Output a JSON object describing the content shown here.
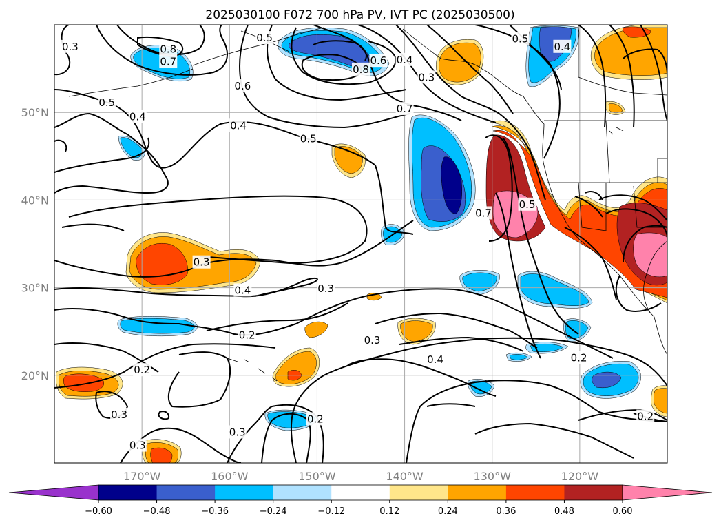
{
  "title": "2025030100 F072 700 hPa PV, IVT PC (2025030500)",
  "map": {
    "lon_range": [
      180,
      110
    ],
    "lat_range": [
      10,
      60
    ],
    "lat_ticks": [
      {
        "value": 50,
        "label": "50°N"
      },
      {
        "value": 40,
        "label": "40°N"
      },
      {
        "value": 30,
        "label": "30°N"
      },
      {
        "value": 20,
        "label": "20°N"
      }
    ],
    "lon_ticks": [
      {
        "value": 170,
        "label": "170°W"
      },
      {
        "value": 160,
        "label": "160°W"
      },
      {
        "value": 150,
        "label": "150°W"
      },
      {
        "value": 140,
        "label": "140°W"
      },
      {
        "value": 130,
        "label": "130°W"
      },
      {
        "value": 120,
        "label": "120°W"
      }
    ],
    "gridlines": true
  },
  "colorbar": {
    "levels": [
      -0.6,
      -0.48,
      -0.36,
      -0.24,
      -0.12,
      0.12,
      0.24,
      0.36,
      0.48,
      0.6
    ],
    "labels": [
      "−0.60",
      "−0.48",
      "−0.36",
      "−0.24",
      "−0.12",
      "0.12",
      "0.24",
      "0.36",
      "0.48",
      "0.60"
    ],
    "colors": [
      "#9932cc",
      "#00008b",
      "#3a5fcd",
      "#00bfff",
      "#b0e2ff",
      "#ffffff",
      "#ffe68a",
      "#ffa500",
      "#ff4500",
      "#b22222",
      "#ff82ab"
    ],
    "extend": "both"
  },
  "contour_labels": [
    {
      "text": "0.3",
      "lon": 178.2,
      "lat": 57.5
    },
    {
      "text": "0.8",
      "lon": 167.0,
      "lat": 57.2
    },
    {
      "text": "0.7",
      "lon": 167.0,
      "lat": 55.8
    },
    {
      "text": "0.5",
      "lon": 174.0,
      "lat": 51.1
    },
    {
      "text": "0.4",
      "lon": 170.5,
      "lat": 49.5
    },
    {
      "text": "0.6",
      "lon": 158.5,
      "lat": 53.0
    },
    {
      "text": "0.4",
      "lon": 159.0,
      "lat": 48.5
    },
    {
      "text": "0.5",
      "lon": 151.0,
      "lat": 47.0
    },
    {
      "text": "0.5",
      "lon": 156.0,
      "lat": 58.5
    },
    {
      "text": "0.8",
      "lon": 145.0,
      "lat": 54.9
    },
    {
      "text": "0.6",
      "lon": 143.0,
      "lat": 55.9
    },
    {
      "text": "0.4",
      "lon": 140.0,
      "lat": 56.0
    },
    {
      "text": "0.3",
      "lon": 137.5,
      "lat": 54.0
    },
    {
      "text": "0.7",
      "lon": 140.0,
      "lat": 50.4
    },
    {
      "text": "0.5",
      "lon": 126.8,
      "lat": 58.4
    },
    {
      "text": "0.4",
      "lon": 122.0,
      "lat": 57.5
    },
    {
      "text": "0.7",
      "lon": 131.0,
      "lat": 38.5
    },
    {
      "text": "0.5",
      "lon": 126.0,
      "lat": 39.5
    },
    {
      "text": "0.3",
      "lon": 163.2,
      "lat": 32.9
    },
    {
      "text": "0.4",
      "lon": 158.5,
      "lat": 29.7
    },
    {
      "text": "0.3",
      "lon": 149.0,
      "lat": 29.9
    },
    {
      "text": "0.2",
      "lon": 158.0,
      "lat": 24.6
    },
    {
      "text": "0.3",
      "lon": 143.7,
      "lat": 24.0
    },
    {
      "text": "0.4",
      "lon": 136.5,
      "lat": 21.8
    },
    {
      "text": "0.2",
      "lon": 170.0,
      "lat": 20.6
    },
    {
      "text": "0.2",
      "lon": 120.1,
      "lat": 22.0
    },
    {
      "text": "0.3",
      "lon": 172.6,
      "lat": 15.5
    },
    {
      "text": "0.2",
      "lon": 150.2,
      "lat": 15.0
    },
    {
      "text": "0.3",
      "lon": 159.1,
      "lat": 13.5
    },
    {
      "text": "0.3",
      "lon": 170.5,
      "lat": 12.0
    },
    {
      "text": "0.2",
      "lon": 112.5,
      "lat": 15.3
    }
  ]
}
